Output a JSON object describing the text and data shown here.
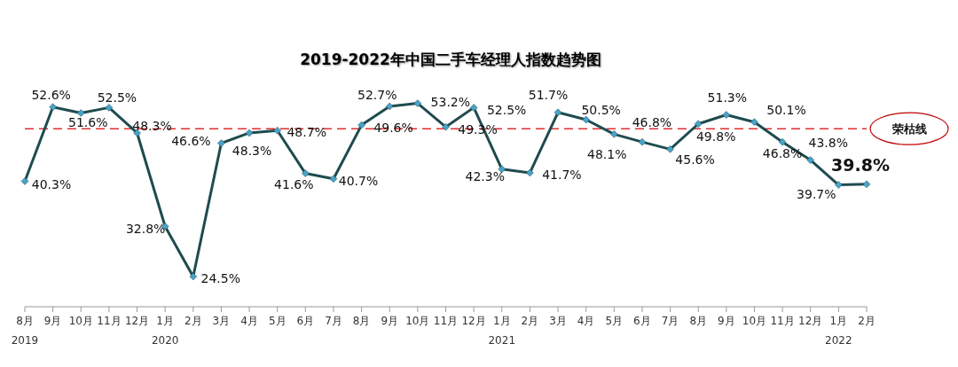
{
  "chart_data": {
    "type": "line",
    "title": "2019-2022年中国二手车经理人指数趋势图",
    "categories": [
      "8月\n2019",
      "9月",
      "10月",
      "11月",
      "12月",
      "1月\n2020",
      "2月",
      "3月",
      "4月",
      "5月",
      "6月",
      "7月",
      "8月",
      "9月",
      "10月",
      "11月",
      "12月",
      "1月\n2021",
      "2月",
      "3月",
      "4月",
      "5月",
      "6月",
      "7月",
      "8月",
      "9月",
      "10月",
      "11月",
      "12月",
      "1月\n2022",
      "2月"
    ],
    "series": [
      {
        "color": "#1f4b4f",
        "values": [
          40.3,
          52.6,
          51.6,
          52.5,
          48.3,
          32.8,
          24.5,
          46.6,
          48.3,
          48.7,
          41.6,
          40.7,
          49.6,
          52.7,
          53.2,
          49.3,
          52.5,
          42.3,
          41.7,
          51.7,
          50.5,
          48.1,
          46.8,
          45.6,
          49.8,
          51.3,
          50.1,
          46.8,
          43.8,
          39.7,
          39.8
        ],
        "value_labels": [
          "40.3%",
          "52.6%",
          "51.6%",
          "52.5%",
          "48.3%",
          "32.8%",
          "24.5%",
          "46.6%",
          "48.3%",
          "48.7%",
          "41.6%",
          "40.7%",
          "49.6%",
          "52.7%",
          "53.2%",
          "49.3%",
          "52.5%",
          "42.3%",
          "41.7%",
          "51.7%",
          "50.5%",
          "48.1%",
          "46.8%",
          "45.6%",
          "49.8%",
          "51.3%",
          "50.1%",
          "46.8%",
          "43.8%",
          "39.7%",
          "39.8%"
        ]
      }
    ],
    "marker": "diamond",
    "line_style": "solid",
    "grid": false,
    "legend": false,
    "ref_lines": [
      {
        "axis": "y",
        "value": 49,
        "label": "荣枯线",
        "color": "#e03030",
        "line_style": "dashed"
      }
    ]
  }
}
